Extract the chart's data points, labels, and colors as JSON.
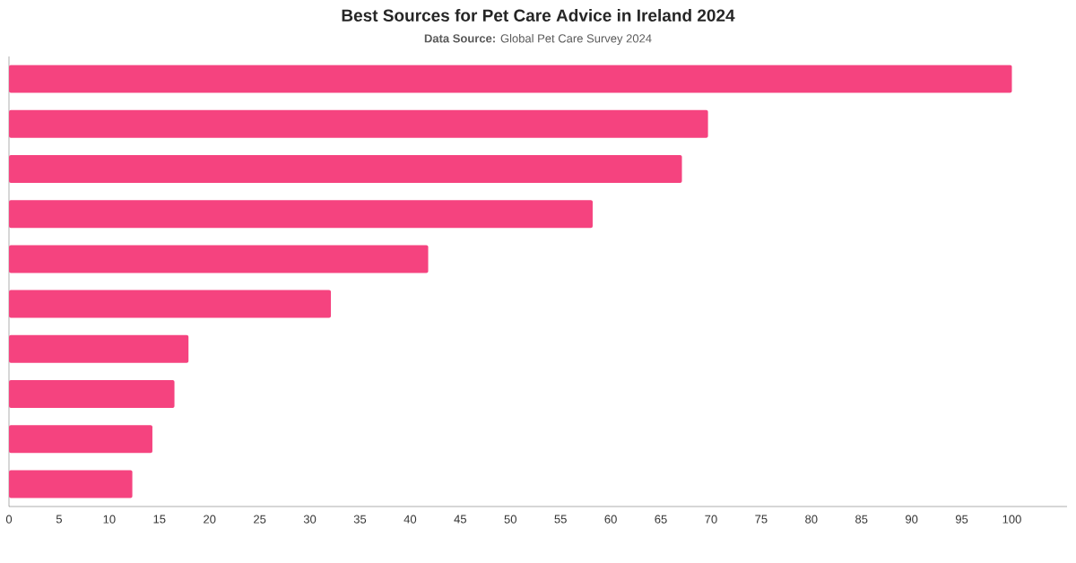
{
  "chart_data": {
    "type": "bar",
    "orientation": "horizontal",
    "title": "Best Sources for Pet Care Advice in Ireland 2024",
    "subtitle": "**Data Source:** Global Pet Care Survey 2024",
    "categories": [
      null,
      null,
      null,
      null,
      null,
      null,
      null,
      null,
      null,
      null
    ],
    "values": [
      100,
      69.7,
      67.1,
      58.2,
      41.8,
      32.1,
      17.9,
      16.5,
      14.3,
      12.3
    ],
    "color": "#f5437f",
    "xlim": [
      0,
      105.5
    ],
    "xticks": [
      0,
      5,
      10,
      15,
      20,
      25,
      30,
      35,
      40,
      45,
      50,
      55,
      60,
      65,
      70,
      75,
      80,
      85,
      90,
      95,
      100
    ]
  }
}
